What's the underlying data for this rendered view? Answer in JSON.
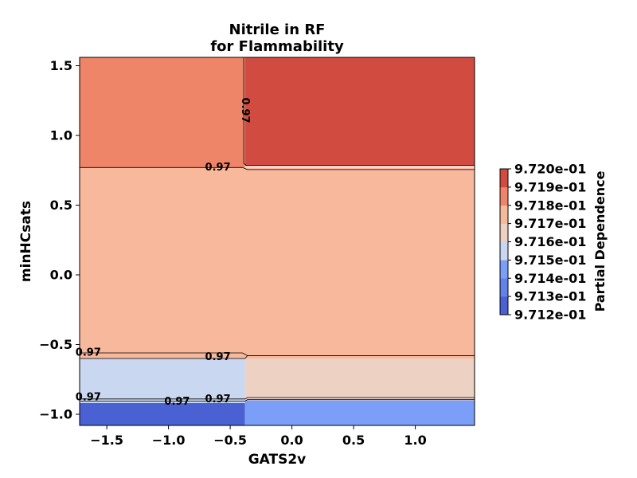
{
  "chart_data": {
    "type": "contour",
    "title_lines": [
      "Nitrile in RF",
      "for Flammability"
    ],
    "xlabel": "GATS2v",
    "ylabel": "minHCsats",
    "xlim": [
      -1.72,
      1.48
    ],
    "ylim": [
      -1.08,
      1.56
    ],
    "xticks": [
      {
        "value": -1.5,
        "label": "−1.5"
      },
      {
        "value": -1.0,
        "label": "−1.0"
      },
      {
        "value": -0.5,
        "label": "−0.5"
      },
      {
        "value": 0.0,
        "label": "0.0"
      },
      {
        "value": 0.5,
        "label": "0.5"
      },
      {
        "value": 1.0,
        "label": "1.0"
      }
    ],
    "yticks": [
      {
        "value": -1.0,
        "label": "−1.0"
      },
      {
        "value": -0.5,
        "label": "−0.5"
      },
      {
        "value": 0.0,
        "label": "0.0"
      },
      {
        "value": 0.5,
        "label": "0.5"
      },
      {
        "value": 1.0,
        "label": "1.0"
      },
      {
        "value": 1.5,
        "label": "1.5"
      }
    ],
    "regions": [
      {
        "x0": -1.72,
        "x1": -0.38,
        "y0": -1.08,
        "y1": -0.92,
        "value": 0.97125
      },
      {
        "x0": -0.38,
        "x1": 1.48,
        "y0": -1.08,
        "y1": -0.9,
        "value": 0.97145
      },
      {
        "x0": -1.72,
        "x1": -0.38,
        "y0": -0.92,
        "y1": -0.6,
        "value": 0.97155
      },
      {
        "x0": -0.38,
        "x1": 1.48,
        "y0": -0.9,
        "y1": -0.58,
        "value": 0.97165
      },
      {
        "x0": -1.72,
        "x1": 1.48,
        "y0": -0.6,
        "y1": 0.77,
        "value": 0.97175
      },
      {
        "x0": -1.72,
        "x1": -0.38,
        "y0": 0.77,
        "y1": 1.56,
        "value": 0.97185
      },
      {
        "x0": -0.38,
        "x1": 1.48,
        "y0": 0.78,
        "y1": 1.56,
        "value": 0.97195
      }
    ],
    "contour_lines": [
      {
        "points": [
          [
            -1.72,
            -0.905
          ],
          [
            -0.38,
            -0.905
          ],
          [
            -0.36,
            -0.895
          ],
          [
            1.48,
            -0.895
          ]
        ]
      },
      {
        "points": [
          [
            -1.72,
            -0.89
          ],
          [
            -0.38,
            -0.89
          ],
          [
            -0.36,
            -0.88
          ],
          [
            1.48,
            -0.88
          ]
        ]
      },
      {
        "points": [
          [
            -1.72,
            -0.6
          ],
          [
            -0.38,
            -0.6
          ],
          [
            -0.36,
            -0.58
          ],
          [
            1.48,
            -0.58
          ]
        ]
      },
      {
        "points": [
          [
            -1.72,
            -0.56
          ],
          [
            -0.4,
            -0.56
          ],
          [
            -0.36,
            -0.58
          ],
          [
            1.48,
            -0.58
          ]
        ]
      },
      {
        "points": [
          [
            -1.72,
            0.77
          ],
          [
            -0.4,
            0.77
          ],
          [
            -0.36,
            0.755
          ],
          [
            1.48,
            0.755
          ]
        ]
      },
      {
        "points": [
          [
            -0.39,
            1.56
          ],
          [
            -0.39,
            0.8
          ],
          [
            -0.37,
            0.785
          ],
          [
            1.48,
            0.785
          ]
        ]
      }
    ],
    "contour_labels": [
      {
        "text": "0.97",
        "x": -0.6,
        "y": 0.77,
        "rotate": 0
      },
      {
        "text": "0.97",
        "x": -0.38,
        "y": 1.18,
        "rotate": 90
      },
      {
        "text": "0.97",
        "x": -1.65,
        "y": -0.56,
        "rotate": 0
      },
      {
        "text": "0.97",
        "x": -0.6,
        "y": -0.59,
        "rotate": 0
      },
      {
        "text": "0.97",
        "x": -1.65,
        "y": -0.88,
        "rotate": 0
      },
      {
        "text": "0.97",
        "x": -0.93,
        "y": -0.91,
        "rotate": 0
      },
      {
        "text": "0.97",
        "x": -0.6,
        "y": -0.895,
        "rotate": 0
      }
    ],
    "colorbar": {
      "label": "Partial Dependence",
      "levels": [
        0.9712,
        0.9713,
        0.9714,
        0.9715,
        0.9716,
        0.9717,
        0.9718,
        0.9719,
        0.972
      ],
      "tick_labels": [
        "9.712e-01",
        "9.713e-01",
        "9.714e-01",
        "9.715e-01",
        "9.716e-01",
        "9.717e-01",
        "9.718e-01",
        "9.719e-01",
        "9.720e-01"
      ],
      "colors": [
        "#4961d2",
        "#6282ea",
        "#7b9ff9",
        "#c9d7f0",
        "#edd1c2",
        "#f7b89c",
        "#ee8468",
        "#d24b40"
      ]
    }
  }
}
